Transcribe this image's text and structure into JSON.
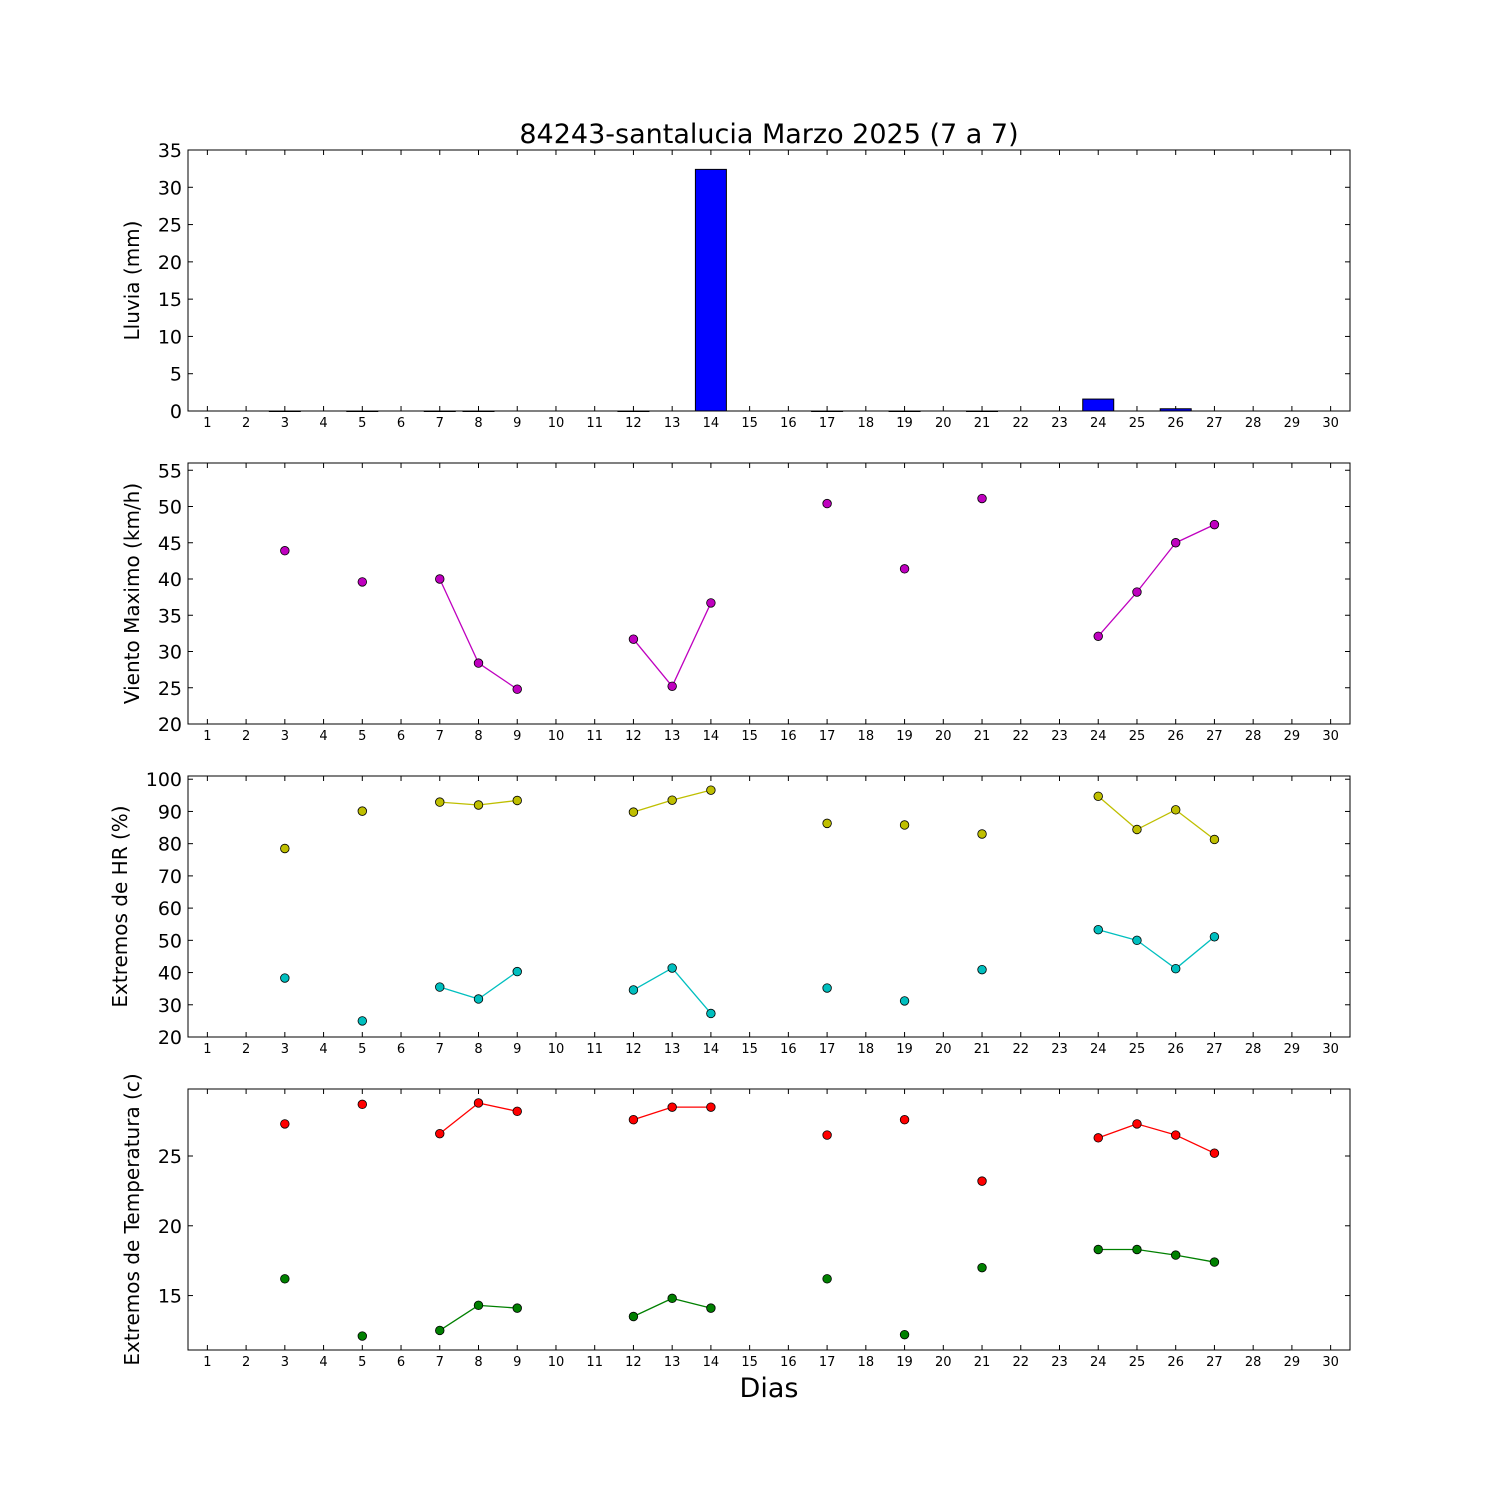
{
  "title": "84243-santalucia Marzo 2025  (7 a 7)",
  "xlabel": "Dias",
  "chart_data": [
    {
      "type": "bar",
      "ylabel": "Lluvia (mm)",
      "ylim": [
        0,
        35
      ],
      "yticks": [
        0,
        5,
        10,
        15,
        20,
        25,
        30,
        35
      ],
      "xlim": [
        0.5,
        30.5
      ],
      "xticks": [
        1,
        2,
        3,
        4,
        5,
        6,
        7,
        8,
        9,
        10,
        11,
        12,
        13,
        14,
        15,
        16,
        17,
        18,
        19,
        20,
        21,
        22,
        23,
        24,
        25,
        26,
        27,
        28,
        29,
        30
      ],
      "series": [
        {
          "color": "#0000ff",
          "x": [
            3,
            5,
            7,
            8,
            12,
            14,
            17,
            19,
            21,
            24,
            26
          ],
          "values": [
            0,
            0,
            0,
            0,
            0,
            32.4,
            0,
            0,
            0,
            1.6,
            0.3
          ]
        }
      ]
    },
    {
      "type": "line",
      "ylabel": "Viento Maximo (km/h)",
      "ylim": [
        20,
        56
      ],
      "yticks": [
        20,
        25,
        30,
        35,
        40,
        45,
        50,
        55
      ],
      "xlim": [
        0.5,
        30.5
      ],
      "xticks": [
        1,
        2,
        3,
        4,
        5,
        6,
        7,
        8,
        9,
        10,
        11,
        12,
        13,
        14,
        15,
        16,
        17,
        18,
        19,
        20,
        21,
        22,
        23,
        24,
        25,
        26,
        27,
        28,
        29,
        30
      ],
      "series": [
        {
          "color": "#bf00bf",
          "x": [
            3,
            5,
            7,
            8,
            9,
            12,
            13,
            14,
            17,
            19,
            21,
            24,
            25,
            26,
            27
          ],
          "values": [
            43.9,
            39.6,
            40.0,
            28.4,
            24.8,
            31.7,
            25.2,
            36.7,
            50.4,
            41.4,
            51.1,
            32.1,
            38.2,
            45.0,
            47.5
          ]
        }
      ]
    },
    {
      "type": "line",
      "ylabel": "Extremos de HR (%)",
      "ylim": [
        20,
        101
      ],
      "yticks": [
        20,
        30,
        40,
        50,
        60,
        70,
        80,
        90,
        100
      ],
      "xlim": [
        0.5,
        30.5
      ],
      "xticks": [
        1,
        2,
        3,
        4,
        5,
        6,
        7,
        8,
        9,
        10,
        11,
        12,
        13,
        14,
        15,
        16,
        17,
        18,
        19,
        20,
        21,
        22,
        23,
        24,
        25,
        26,
        27,
        28,
        29,
        30
      ],
      "series": [
        {
          "color": "#bfbf00",
          "x": [
            3,
            5,
            7,
            8,
            9,
            12,
            13,
            14,
            17,
            19,
            21,
            24,
            25,
            26,
            27
          ],
          "values": [
            78.5,
            90.1,
            92.9,
            92.0,
            93.4,
            89.8,
            93.5,
            96.6,
            86.3,
            85.8,
            83.0,
            94.7,
            84.4,
            90.5,
            81.3
          ]
        },
        {
          "color": "#00bfbf",
          "x": [
            3,
            5,
            7,
            8,
            9,
            12,
            13,
            14,
            17,
            19,
            21,
            24,
            25,
            26,
            27
          ],
          "values": [
            38.3,
            25.0,
            35.5,
            31.8,
            40.3,
            34.6,
            41.4,
            27.3,
            35.2,
            31.2,
            40.9,
            53.3,
            50.0,
            41.2,
            51.1
          ]
        }
      ]
    },
    {
      "type": "line",
      "ylabel": "Extremos de Temperatura (c)",
      "ylim": [
        11.1,
        29.8
      ],
      "yticks": [
        15,
        20,
        25
      ],
      "xlim": [
        0.5,
        30.5
      ],
      "xticks": [
        1,
        2,
        3,
        4,
        5,
        6,
        7,
        8,
        9,
        10,
        11,
        12,
        13,
        14,
        15,
        16,
        17,
        18,
        19,
        20,
        21,
        22,
        23,
        24,
        25,
        26,
        27,
        28,
        29,
        30
      ],
      "series": [
        {
          "color": "#ff0000",
          "x": [
            3,
            5,
            7,
            8,
            9,
            12,
            13,
            14,
            17,
            19,
            21,
            24,
            25,
            26,
            27
          ],
          "values": [
            27.3,
            28.7,
            26.6,
            28.8,
            28.2,
            27.6,
            28.5,
            28.5,
            26.5,
            27.6,
            23.2,
            26.3,
            27.3,
            26.5,
            25.2
          ]
        },
        {
          "color": "#008000",
          "x": [
            3,
            5,
            7,
            8,
            9,
            12,
            13,
            14,
            17,
            19,
            21,
            24,
            25,
            26,
            27
          ],
          "values": [
            16.2,
            12.1,
            12.5,
            14.3,
            14.1,
            13.5,
            14.8,
            14.1,
            16.2,
            12.2,
            17.0,
            18.3,
            18.3,
            17.9,
            17.4
          ]
        }
      ]
    }
  ]
}
